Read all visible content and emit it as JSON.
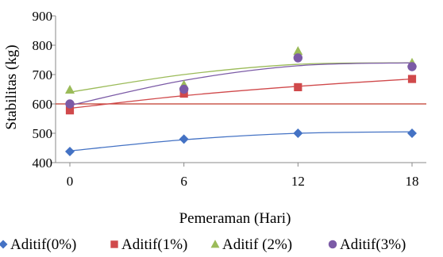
{
  "chart_data": {
    "type": "scatter",
    "xlabel": "Pemeraman (Hari)",
    "ylabel": "Stabilitas (kg)",
    "x": [
      0,
      6,
      12,
      18
    ],
    "x_ticks": [
      "0",
      "6",
      "12",
      "18"
    ],
    "y_ticks": [
      "400",
      "500",
      "600",
      "700",
      "800",
      "900"
    ],
    "xlim": [
      0,
      18
    ],
    "ylim": [
      400,
      900
    ],
    "reference_line": {
      "y": 600,
      "color": "#c0392b"
    },
    "grid": false,
    "legend_position": "bottom",
    "series": [
      {
        "name": "Aditif(0%)",
        "marker": "diamond",
        "color": "#4472c4",
        "values": [
          438,
          480,
          500,
          500
        ],
        "trend": [
          440,
          478,
          500,
          505
        ]
      },
      {
        "name": "Aditif(1%)",
        "marker": "square",
        "color": "#d0494b",
        "values": [
          578,
          635,
          657,
          685
        ],
        "trend": [
          585,
          628,
          660,
          685
        ]
      },
      {
        "name": "Aditif (2%)",
        "marker": "triangle",
        "color": "#9bbb59",
        "values": [
          648,
          665,
          780,
          740
        ],
        "trend": [
          640,
          700,
          735,
          740
        ]
      },
      {
        "name": "Aditif(3%)",
        "marker": "circle",
        "color": "#7b5aa6",
        "values": [
          600,
          650,
          757,
          727
        ],
        "trend": [
          595,
          680,
          730,
          740
        ]
      }
    ]
  }
}
